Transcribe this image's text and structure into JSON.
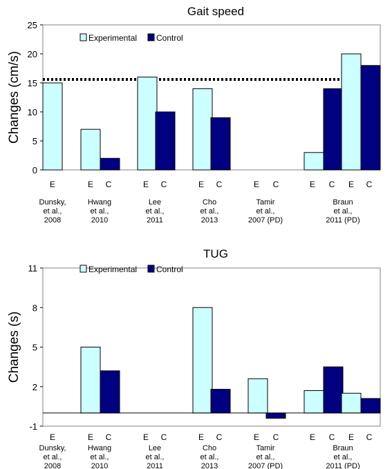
{
  "chart_data": [
    {
      "type": "bar",
      "title": "Gait speed",
      "ylabel": "Changes (cm/s)",
      "ylim": [
        0,
        25
      ],
      "yticks": [
        "0",
        "5",
        "10",
        "15",
        "20",
        "25"
      ],
      "reference_line": 15.6,
      "legend": [
        {
          "name": "Experimental",
          "color": "#ccffff"
        },
        {
          "name": "Control",
          "color": "#000080"
        }
      ],
      "slots": [
        "E",
        "C",
        "E",
        "C",
        "E",
        "C",
        "E",
        "C",
        "E",
        "C",
        "E",
        "C",
        "E",
        "C"
      ],
      "slot_labels": [
        "E",
        "",
        "E",
        "C",
        "E",
        "C",
        "E",
        "C",
        "E",
        "C",
        "E",
        "C",
        "E",
        "C"
      ],
      "values": [
        15,
        null,
        7,
        2,
        16,
        10,
        14,
        9,
        null,
        null,
        3,
        14,
        20,
        18
      ],
      "studies": [
        {
          "lines": [
            "Dunsky,",
            "et al.,",
            "2008"
          ]
        },
        {
          "lines": [
            "Hwang",
            "et al.,",
            "2010"
          ]
        },
        {
          "lines": [
            "Lee",
            "et al.,",
            "2011"
          ]
        },
        {
          "lines": [
            "Cho",
            "et al.,",
            "2013"
          ]
        },
        {
          "lines": [
            "Tamir",
            "et al.,",
            "2007  (PD)"
          ]
        },
        {
          "lines": [
            "Braun",
            "et  al.,",
            "2011 (PD)"
          ]
        }
      ]
    },
    {
      "type": "bar",
      "title": "TUG",
      "ylabel": "Changes (s)",
      "ylim": [
        -1,
        11
      ],
      "yticks": [
        "-1",
        "2",
        "5",
        "8",
        "11"
      ],
      "legend": [
        {
          "name": "Experimental",
          "color": "#ccffff"
        },
        {
          "name": "Control",
          "color": "#000080"
        }
      ],
      "slots": [
        "E",
        "C",
        "E",
        "C",
        "E",
        "C",
        "E",
        "C",
        "E",
        "C",
        "E",
        "C",
        "E",
        "C"
      ],
      "slot_labels": [
        "E",
        "",
        "E",
        "C",
        "E",
        "C",
        "E",
        "C",
        "E",
        "C",
        "E",
        "C",
        "E",
        "C"
      ],
      "values": [
        null,
        null,
        5,
        3.2,
        null,
        null,
        8,
        1.8,
        2.6,
        -0.4,
        1.7,
        3.5,
        1.5,
        1.1
      ],
      "studies": [
        {
          "lines": [
            "Dunsky,",
            "et al.,",
            "2008"
          ]
        },
        {
          "lines": [
            "Hwang",
            "et al.,",
            "2010"
          ]
        },
        {
          "lines": [
            "Lee",
            "et al.,",
            "2011"
          ]
        },
        {
          "lines": [
            "Cho",
            "et al.,",
            "2013"
          ]
        },
        {
          "lines": [
            "Tamir",
            "et al.,",
            "2007  (PD)"
          ]
        },
        {
          "lines": [
            "Braun",
            "et  al.,",
            "2011 (PD)"
          ]
        }
      ]
    }
  ]
}
